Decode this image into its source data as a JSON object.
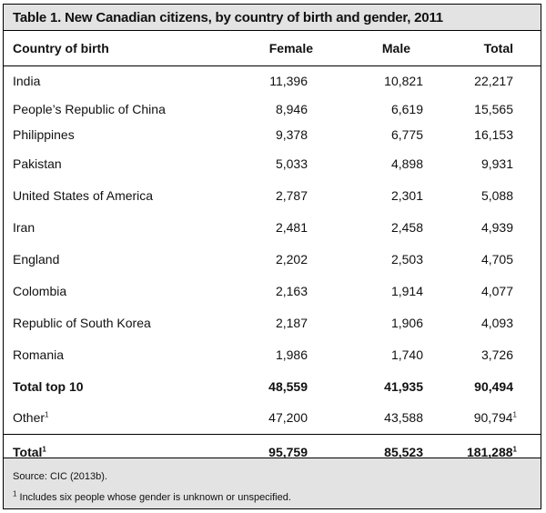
{
  "title": "Table 1. New Canadian citizens, by country of birth and gender, 2011",
  "columns": [
    "Country of birth",
    "Female",
    "Male",
    "Total"
  ],
  "rows": [
    {
      "country": "India",
      "female": "11,396",
      "male": "10,821",
      "total": "22,217"
    },
    {
      "country": "People’s Republic of China",
      "female": "8,946",
      "male": "6,619",
      "total": "15,565"
    },
    {
      "country": "Philippines",
      "female": "9,378",
      "male": "6,775",
      "total": "16,153"
    },
    {
      "country": "Pakistan",
      "female": "5,033",
      "male": "4,898",
      "total": "9,931"
    },
    {
      "country": "United States of America",
      "female": "2,787",
      "male": "2,301",
      "total": "5,088"
    },
    {
      "country": "Iran",
      "female": "2,481",
      "male": "2,458",
      "total": "4,939"
    },
    {
      "country": "England",
      "female": "2,202",
      "male": "2,503",
      "total": "4,705"
    },
    {
      "country": "Colombia",
      "female": "2,163",
      "male": "1,914",
      "total": "4,077"
    },
    {
      "country": "Republic of South Korea",
      "female": "2,187",
      "male": "1,906",
      "total": "4,093"
    },
    {
      "country": "Romania",
      "female": "1,986",
      "male": "1,740",
      "total": "3,726"
    }
  ],
  "top10": {
    "label": "Total top 10",
    "female": "48,559",
    "male": "41,935",
    "total": "90,494"
  },
  "other": {
    "label": "Other",
    "sup": "1",
    "female": "47,200",
    "male": "43,588",
    "total": "90,794",
    "total_sup": "1"
  },
  "grand_total": {
    "label": "Total",
    "sup": "1",
    "female": "95,759",
    "male": "85,523",
    "total": "181,288",
    "total_sup": "1"
  },
  "footer": {
    "source": "Source: CIC (2013b).",
    "note_mark": "1",
    "note": " Includes six people whose gender is unknown or unspecified."
  }
}
